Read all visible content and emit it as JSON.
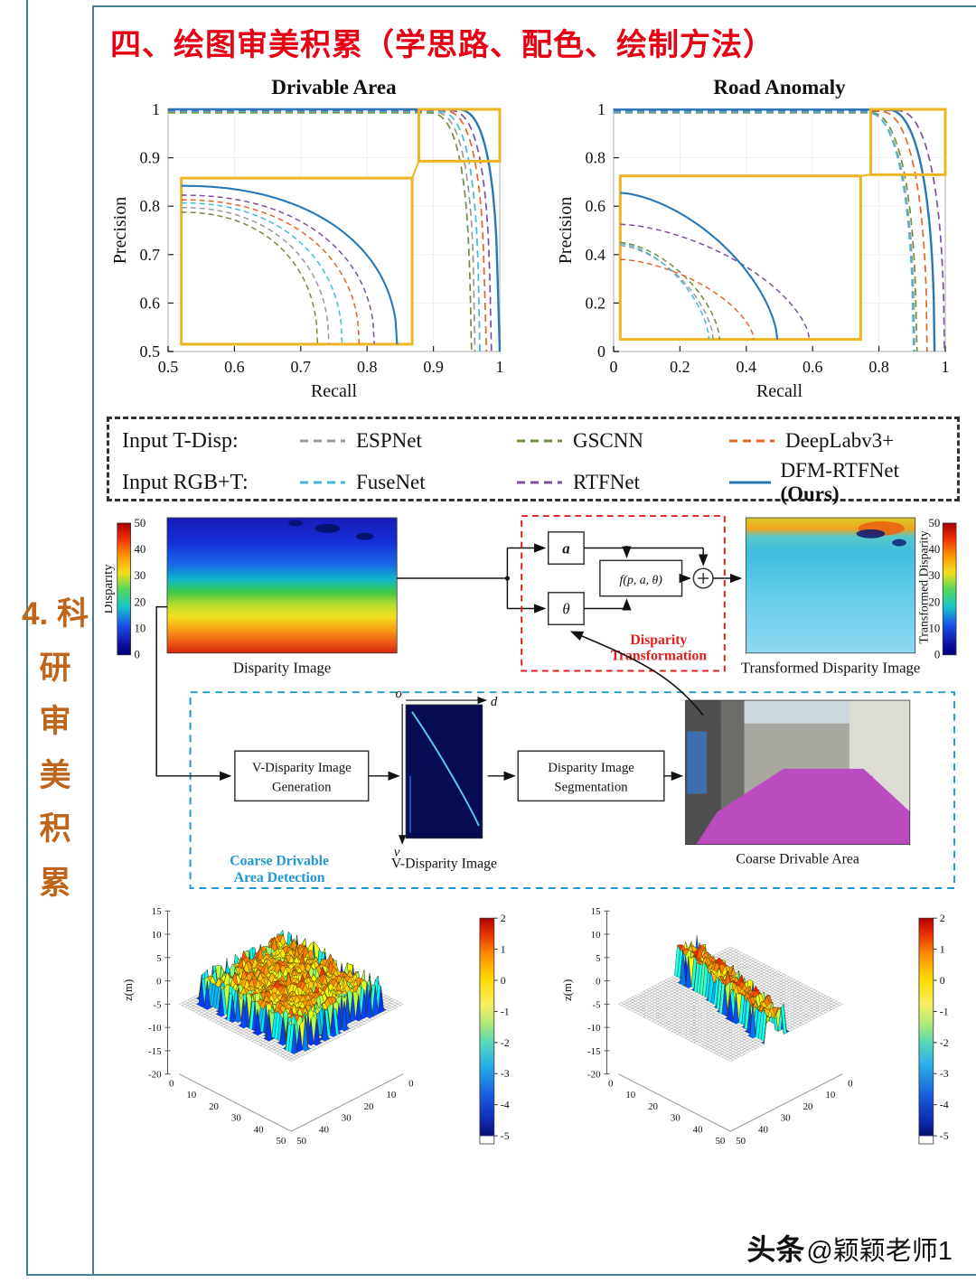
{
  "title": "四、绘图审美积累（学思路、配色、绘制方法）",
  "side_label": {
    "lines": [
      "4. 科",
      "研 审",
      "美 积",
      "累"
    ]
  },
  "colors": {
    "frame": "#46808f",
    "title_red": "#e60012",
    "inset_yellow": "#eeb422",
    "ours_blue": "#2878b8",
    "red_box": "#e02020",
    "blue_box": "#2196d0",
    "side_orange": "#bf651a",
    "coarse_magenta": "#bb4cc0"
  },
  "legend": {
    "rows": [
      {
        "label": "Input T-Disp:",
        "items": [
          {
            "name": "ESPNet",
            "color": "#9a9a9a",
            "dash": true
          },
          {
            "name": "GSCNN",
            "color": "#6f8f3f",
            "dash": true
          },
          {
            "name": "DeepLabv3+",
            "color": "#e2662c",
            "dash": true
          }
        ]
      },
      {
        "label": "Input RGB+T:",
        "items": [
          {
            "name": "FuseNet",
            "color": "#45b8d8",
            "dash": true
          },
          {
            "name": "RTFNet",
            "color": "#7d4f9e",
            "dash": true
          },
          {
            "name": "DFM-RTFNet ",
            "bold_suffix": "(Ours)",
            "color": "#2878b8",
            "dash": false
          }
        ]
      }
    ]
  },
  "chart_data": [
    {
      "type": "line",
      "title": "Drivable Area",
      "xlabel": "Recall",
      "ylabel": "Precision",
      "xlim": [
        0.5,
        1
      ],
      "ylim": [
        0.5,
        1
      ],
      "xticks": [
        0.5,
        0.6,
        0.7,
        0.8,
        0.9,
        1
      ],
      "yticks": [
        0.5,
        0.6,
        0.7,
        0.8,
        0.9,
        1
      ],
      "zoom_box": [
        0.878,
        1.0,
        0.893,
        1.0
      ],
      "inset_box": [
        0.52,
        0.868,
        0.515,
        0.858
      ],
      "main_span": 0.06,
      "main_tail": 0.006,
      "main_m": 2.8,
      "inset_m": 2.2,
      "pbottom": 0.49,
      "series": [
        {
          "name": "ESPNet",
          "color": "#9a9a9a",
          "dash": true,
          "ptop": 0.995,
          "knee": 0.956,
          "inset_top": 0.981
        },
        {
          "name": "GSCNN",
          "color": "#6f8f3f",
          "dash": true,
          "ptop": 0.993,
          "knee": 0.95,
          "inset_top": 0.978
        },
        {
          "name": "DeepLabv3+",
          "color": "#e2662c",
          "dash": true,
          "ptop": 0.997,
          "knee": 0.972,
          "inset_top": 0.986
        },
        {
          "name": "FuseNet",
          "color": "#45b8d8",
          "dash": true,
          "ptop": 0.996,
          "knee": 0.963,
          "inset_top": 0.984
        },
        {
          "name": "RTFNet",
          "color": "#7d4f9e",
          "dash": true,
          "ptop": 0.998,
          "knee": 0.98,
          "inset_top": 0.989
        },
        {
          "name": "DFM-RTFNet (Ours)",
          "color": "#2878b8",
          "dash": false,
          "ptop": 1.0,
          "knee": 0.992,
          "inset_top": 0.995
        }
      ]
    },
    {
      "type": "line",
      "title": "Road Anomaly",
      "xlabel": "Recall",
      "ylabel": "Precision",
      "xlim": [
        0,
        1
      ],
      "ylim": [
        0,
        1
      ],
      "xticks": [
        0,
        0.2,
        0.4,
        0.6,
        0.8,
        1
      ],
      "yticks": [
        0,
        0.2,
        0.4,
        0.6,
        0.8,
        1
      ],
      "zoom_box": [
        0.775,
        1.0,
        0.73,
        1.0
      ],
      "inset_box": [
        0.02,
        0.745,
        0.05,
        0.725
      ],
      "main_span": 0.1,
      "main_tail": 0.045,
      "main_m": 2.4,
      "inset_m": 1.6,
      "pbottom": -0.02,
      "series": [
        {
          "name": "ESPNet",
          "color": "#9a9a9a",
          "dash": true,
          "ptop": 0.985,
          "knee": 0.862,
          "inset_top": 0.885
        },
        {
          "name": "GSCNN",
          "color": "#6f8f3f",
          "dash": true,
          "ptop": 0.988,
          "knee": 0.868,
          "inset_top": 0.89
        },
        {
          "name": "DeepLabv3+",
          "color": "#e2662c",
          "dash": true,
          "ptop": 0.992,
          "knee": 0.9,
          "inset_top": 0.862
        },
        {
          "name": "FuseNet",
          "color": "#45b8d8",
          "dash": true,
          "ptop": 0.99,
          "knee": 0.858,
          "inset_top": 0.888
        },
        {
          "name": "RTFNet",
          "color": "#7d4f9e",
          "dash": true,
          "ptop": 0.995,
          "knee": 0.952,
          "inset_top": 0.92
        },
        {
          "name": "DFM-RTFNet (Ours)",
          "color": "#2878b8",
          "dash": false,
          "ptop": 0.999,
          "knee": 0.922,
          "inset_top": 0.972
        }
      ]
    }
  ],
  "pipeline": {
    "colorbar_left": {
      "label": "Disparity",
      "ticks": [
        50,
        40,
        30,
        20,
        10,
        0
      ]
    },
    "colorbar_right": {
      "label": "Transformed Disparity",
      "ticks": [
        50,
        40,
        30,
        20,
        10,
        0
      ]
    },
    "captions": {
      "disparity": "Disparity Image",
      "transformed": "Transformed Disparity Image",
      "vdisparity": "V-Disparity Image",
      "coarse": "Coarse Drivable Area"
    },
    "boxes": {
      "vdisp_gen": [
        "V-Disparity Image",
        "Generation"
      ],
      "seg": [
        "Disparity Image",
        "Segmentation"
      ]
    },
    "nodes": {
      "a": "a",
      "theta": "θ",
      "f": "f(p, a, θ)"
    },
    "labels": {
      "transformation": [
        "Disparity",
        "Transformation"
      ],
      "coarse_detection": [
        "Coarse Drivable",
        "Area Detection"
      ]
    },
    "axes": {
      "o": "o",
      "d": "d",
      "v": "v"
    }
  },
  "surfaces": {
    "zlabel": "z(m)",
    "zticks": [
      15,
      10,
      5,
      0,
      -5,
      -10,
      -15,
      -20
    ],
    "xticks": [
      0,
      10,
      20,
      30,
      40,
      50
    ],
    "colorbar_ticks": [
      2,
      1,
      0,
      -1,
      -2,
      -3,
      -4,
      -5
    ],
    "plots": [
      {
        "shape": "plateau"
      },
      {
        "shape": "ridge"
      }
    ]
  },
  "watermark": {
    "brand": "头条",
    "handle": "@颖颖老师1"
  }
}
